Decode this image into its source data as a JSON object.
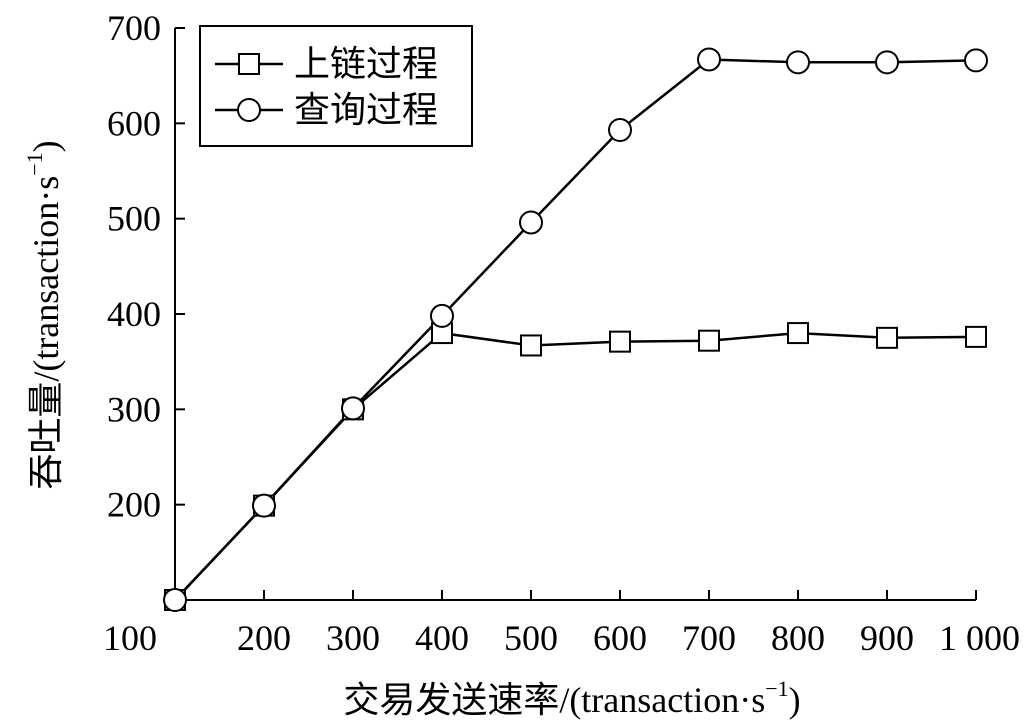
{
  "chart_data": {
    "type": "line",
    "xlabel": "交易发送速率/(transaction·s",
    "xlabel_sup": "−1",
    "xlabel_tail": ")",
    "ylabel": "吞吐量/(transaction·s",
    "ylabel_sup": "−1",
    "ylabel_tail": ")",
    "xlim": [
      100,
      1000
    ],
    "ylim": [
      100,
      700
    ],
    "x_ticks": [
      100,
      200,
      300,
      400,
      500,
      600,
      700,
      800,
      900,
      1000
    ],
    "x_tick_labels": [
      "100",
      "200",
      "300",
      "400",
      "500",
      "600",
      "700",
      "800",
      "900",
      "1 000"
    ],
    "y_ticks": [
      200,
      300,
      400,
      500,
      600,
      700
    ],
    "y_tick_labels": [
      "200",
      "300",
      "400",
      "500",
      "600",
      "700"
    ],
    "grid": false,
    "legend_position": "top-left",
    "x": [
      100,
      200,
      300,
      400,
      500,
      600,
      700,
      800,
      900,
      1000
    ],
    "series": [
      {
        "name": "上链过程",
        "marker": "square",
        "values": [
          100,
          199,
          300,
          380,
          367,
          371,
          372,
          380,
          375,
          376
        ]
      },
      {
        "name": "查询过程",
        "marker": "circle",
        "values": [
          100,
          199,
          301,
          398,
          496,
          593,
          667,
          664,
          664,
          666
        ]
      }
    ]
  }
}
